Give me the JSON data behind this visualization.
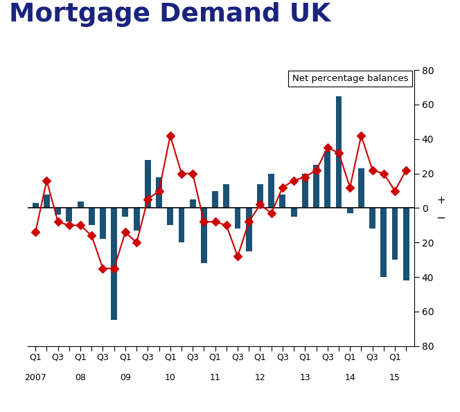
{
  "title": "Mortgage Demand UK",
  "subtitle": "Net percentage balances",
  "bar_color": "#1a5276",
  "line_color": "#cc0000",
  "ylim": [
    -80,
    80
  ],
  "yticks": [
    -80,
    -60,
    -40,
    -20,
    0,
    20,
    40,
    60,
    80
  ],
  "background_color": "#ffffff",
  "title_color": "#1a237e",
  "bar_values": [
    3,
    8,
    -4,
    -8,
    4,
    -10,
    -18,
    -65,
    -5,
    -13,
    28,
    18,
    -10,
    -20,
    5,
    -32,
    10,
    14,
    -12,
    -25,
    14,
    20,
    8,
    -5,
    20,
    25,
    33,
    65,
    -3,
    23,
    -12,
    -40,
    -30,
    -42
  ],
  "line_values": [
    -14,
    16,
    -8,
    -10,
    -10,
    -16,
    -35,
    -35,
    -14,
    -20,
    5,
    10,
    42,
    20,
    20,
    -8,
    -8,
    -10,
    -28,
    -8,
    2,
    -3,
    12,
    16,
    18,
    22,
    35,
    32,
    12,
    42,
    22,
    20,
    10,
    22
  ],
  "year_strs": [
    "2007",
    "08",
    "09",
    "10",
    "11",
    "12",
    "13",
    "14",
    "15"
  ],
  "n_quarters": 34
}
